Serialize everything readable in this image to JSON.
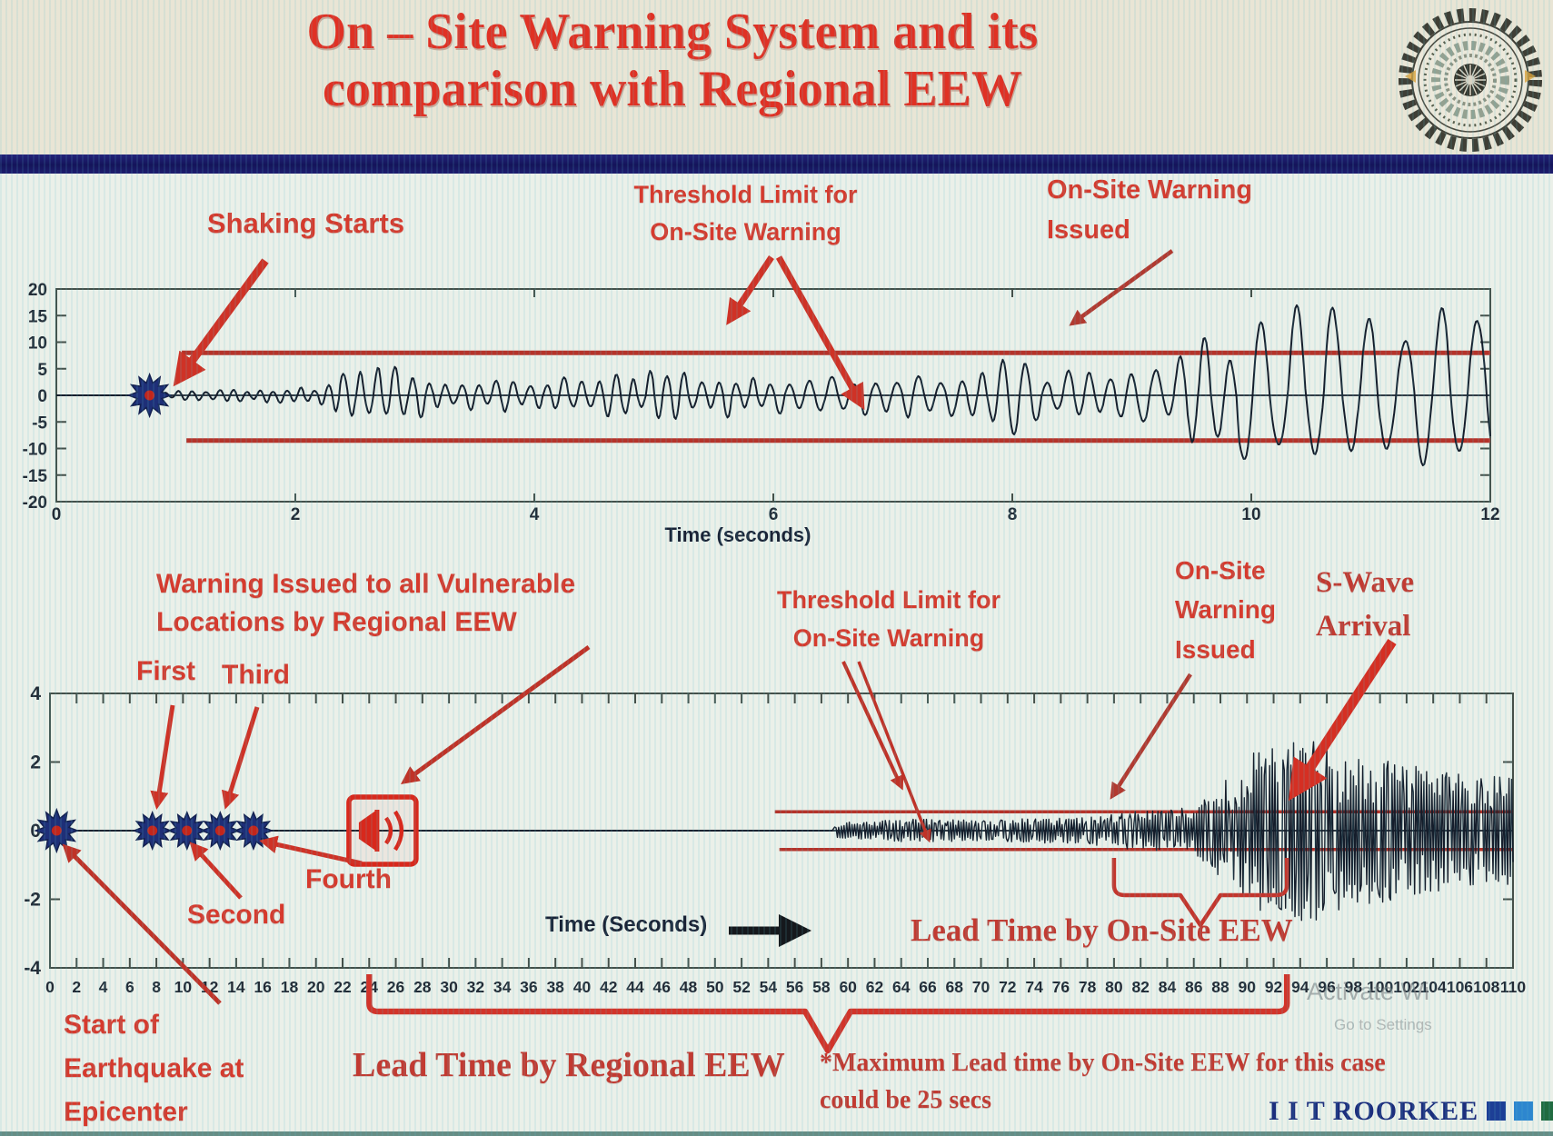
{
  "header": {
    "title_line1": "On – Site Warning System and its",
    "title_line2": "comparison with Regional EEW",
    "title_color": "#e03124",
    "band_bg": "#e9e5d5",
    "separator_color": "#14145a",
    "logo_name": "IIT Roorkee circular seal"
  },
  "footer": {
    "wordmark": "I I T ROORKEE",
    "square_colors": [
      "#1d3f96",
      "#2d86cf",
      "#206b40"
    ],
    "watermark_line1": "Activate Wi",
    "watermark_line2": "Go to Settings"
  },
  "annotations": {
    "top": {
      "shaking": "Shaking Starts",
      "threshold_line1": "Threshold Limit for",
      "threshold_line2": "On-Site Warning",
      "issued_line1": "On-Site Warning",
      "issued_line2": "Issued"
    },
    "bottom": {
      "regional_warning_line1": "Warning Issued to all Vulnerable",
      "regional_warning_line2": "Locations by Regional EEW",
      "first": "First",
      "second": "Second",
      "third": "Third",
      "fourth": "Fourth",
      "threshold_line1": "Threshold Limit for",
      "threshold_line2": "On-Site Warning",
      "issued_line1": "On-Site",
      "issued_line2": "Warning",
      "issued_line3": "Issued",
      "swave_line1": "S-Wave",
      "swave_line2": "Arrival",
      "lead_onsite": "Lead Time by On-Site EEW",
      "lead_regional": "Lead Time by Regional EEW",
      "note_line1": "*Maximum Lead time by On-Site EEW for this case",
      "note_line2": "could be 25 secs",
      "start_line1": "Start of",
      "start_line2": "Earthquake at",
      "start_line3": "Epicenter"
    }
  },
  "chart_data": [
    {
      "type": "line",
      "id": "onsite-seismogram",
      "xlabel": "Time (seconds)",
      "ylabel": "",
      "xlim": [
        0,
        12
      ],
      "xticks": [
        0,
        2,
        4,
        6,
        8,
        10,
        12
      ],
      "ylim": [
        -20,
        20
      ],
      "yticks": [
        20,
        15,
        10,
        5,
        0,
        -5,
        -10,
        -15,
        -20
      ],
      "grid": false,
      "line_color": "#151e2c",
      "threshold": {
        "upper": 8,
        "lower": -8.5,
        "starts_at_x": 1.05,
        "color": "#b5332a",
        "label": "Threshold Limit for On-Site Warning"
      },
      "shaking_start_marker": {
        "x": 0.78,
        "y": 0,
        "label": "Shaking Starts"
      },
      "onsite_warning_issued_x": 8.05,
      "amplitude_envelope_breakpoints": [
        [
          0,
          0
        ],
        [
          0.78,
          0
        ],
        [
          0.82,
          0.7
        ],
        [
          1.4,
          1.0
        ],
        [
          2.2,
          1.6
        ],
        [
          2.45,
          4.8
        ],
        [
          2.9,
          5.2
        ],
        [
          3.3,
          2.6
        ],
        [
          4.3,
          3.4
        ],
        [
          5.2,
          4.6
        ],
        [
          6.2,
          3.6
        ],
        [
          7.0,
          4.2
        ],
        [
          7.6,
          4.0
        ],
        [
          7.95,
          8.6
        ],
        [
          8.2,
          4.8
        ],
        [
          9.0,
          5.2
        ],
        [
          9.45,
          8.2
        ],
        [
          9.9,
          13.5
        ],
        [
          10.6,
          16.5
        ],
        [
          11.4,
          15.0
        ],
        [
          12,
          15.5
        ]
      ]
    },
    {
      "type": "line",
      "id": "regional-vs-onsite-comparison",
      "xlabel": "Time (Seconds)",
      "ylabel": "",
      "xlim": [
        0,
        110
      ],
      "xtick_step": 2,
      "ylim": [
        -4,
        4
      ],
      "yticks": [
        4,
        2,
        0,
        -2,
        -4
      ],
      "grid": false,
      "line_color": "#141d2b",
      "threshold": {
        "upper": 0.55,
        "lower": -0.55,
        "starts_at_x": 54.5,
        "color": "#b5332a",
        "label": "Threshold Limit for On-Site Warning"
      },
      "epicenter_marker": {
        "x": 0.5,
        "y": 0,
        "label": "Start of Earthquake at Epicenter"
      },
      "p_wave_detection_markers": [
        {
          "order": "First",
          "x": 7.7
        },
        {
          "order": "Second",
          "x": 10.3
        },
        {
          "order": "Third",
          "x": 12.8
        },
        {
          "order": "Fourth",
          "x": 15.3
        }
      ],
      "regional_warning_icon_x": 25,
      "waveform_start_x": 59,
      "onsite_warning_issued_x": 80,
      "s_wave_arrival_x": 93,
      "lead_time_regional": {
        "from_x": 24,
        "to_x": 93,
        "label": "Lead Time by Regional EEW"
      },
      "lead_time_onsite": {
        "from_x": 80,
        "to_x": 93,
        "label": "Lead Time by On-Site EEW"
      },
      "max_lead_time_note": "*Maximum Lead time by On-Site EEW for this case could be 25 secs",
      "amplitude_envelope_breakpoints": [
        [
          0,
          0
        ],
        [
          58.8,
          0
        ],
        [
          59.2,
          0.22
        ],
        [
          62,
          0.28
        ],
        [
          66,
          0.33
        ],
        [
          70,
          0.3
        ],
        [
          74,
          0.34
        ],
        [
          78,
          0.36
        ],
        [
          80,
          0.5
        ],
        [
          83,
          0.55
        ],
        [
          86,
          0.7
        ],
        [
          88,
          1.3
        ],
        [
          90,
          2.1
        ],
        [
          93,
          2.45
        ],
        [
          95,
          2.55
        ],
        [
          97,
          2.2
        ],
        [
          100,
          2.0
        ],
        [
          103,
          1.85
        ],
        [
          106,
          1.6
        ],
        [
          110,
          1.5
        ]
      ]
    }
  ]
}
